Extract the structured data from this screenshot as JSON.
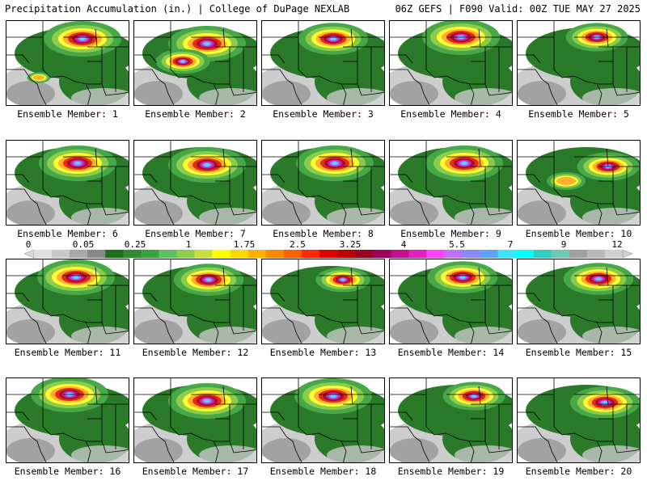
{
  "header": {
    "left_title": "Precipitation Accumulation (in.) | College of DuPage NEXLAB",
    "right_title": "06Z GEFS | F090 Valid: 00Z TUE MAY 27 2025"
  },
  "colorbar": {
    "labels": [
      "0",
      "0.05",
      "0.25",
      "1",
      "1.75",
      "2.5",
      "3.25",
      "4",
      "5.5",
      "7",
      "9",
      "12"
    ],
    "colors": [
      "#e0e0e0",
      "#c8c8c8",
      "#a8a8a8",
      "#888888",
      "#1e6e1e",
      "#2e8b2e",
      "#3ca03c",
      "#5cc05c",
      "#8ad04a",
      "#c8e03c",
      "#ffff00",
      "#ffd800",
      "#ffb000",
      "#ff8800",
      "#ff6000",
      "#ff2a00",
      "#e00000",
      "#b80000",
      "#9a0020",
      "#a00060",
      "#c0108a",
      "#e020c0",
      "#ff40ff",
      "#c070ff",
      "#8a8aff",
      "#60a0ff",
      "#40e0ff",
      "#00ffff",
      "#30d0c0",
      "#70c8b0",
      "#a0a0a0",
      "#b8b8b8",
      "#d0d0d0"
    ]
  },
  "ensemble": {
    "caption_prefix": "Ensemble Member:",
    "members": [
      {
        "number": "1",
        "label": "Ensemble Member: 1"
      },
      {
        "number": "2",
        "label": "Ensemble Member: 2"
      },
      {
        "number": "3",
        "label": "Ensemble Member: 3"
      },
      {
        "number": "4",
        "label": "Ensemble Member: 4"
      },
      {
        "number": "5",
        "label": "Ensemble Member: 5"
      },
      {
        "number": "6",
        "label": "Ensemble Member: 6"
      },
      {
        "number": "7",
        "label": "Ensemble Member: 7"
      },
      {
        "number": "8",
        "label": "Ensemble Member: 8"
      },
      {
        "number": "9",
        "label": "Ensemble Member: 9"
      },
      {
        "number": "10",
        "label": "Ensemble Member: 10"
      },
      {
        "number": "11",
        "label": "Ensemble Member: 11"
      },
      {
        "number": "12",
        "label": "Ensemble Member: 12"
      },
      {
        "number": "13",
        "label": "Ensemble Member: 13"
      },
      {
        "number": "14",
        "label": "Ensemble Member: 14"
      },
      {
        "number": "15",
        "label": "Ensemble Member: 15"
      },
      {
        "number": "16",
        "label": "Ensemble Member: 16"
      },
      {
        "number": "17",
        "label": "Ensemble Member: 17"
      },
      {
        "number": "18",
        "label": "Ensemble Member: 18"
      },
      {
        "number": "19",
        "label": "Ensemble Member: 19"
      },
      {
        "number": "20",
        "label": "Ensemble Member: 20"
      }
    ]
  },
  "map_colors": {
    "background": "#ffffff",
    "light_rain_gray": "#c8c8c8",
    "dark_gray": "#909090",
    "dark_green": "#2a7a2a",
    "green": "#46a846",
    "light_green": "#8ccc4a",
    "yellow": "#ffff30",
    "orange": "#ffb030",
    "red": "#e82a10",
    "dark_red": "#a0102a",
    "magenta": "#d020c0",
    "purple": "#b070ff",
    "cyan": "#40e8ff",
    "boundary": "#000000"
  }
}
